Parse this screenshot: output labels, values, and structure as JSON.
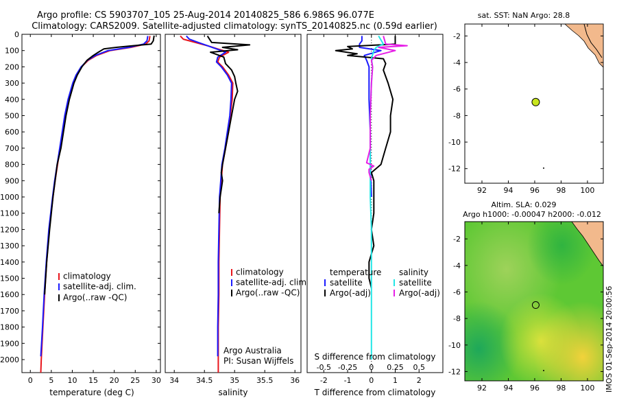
{
  "title": {
    "line1": "Argo profile: CS 5903707_105 25-Aug-2014 20140825_586 6.986S 96.077E",
    "line2": "Climatology: CARS2009. Satellite-adjusted climatology: synTS_20140825.nc (0.59d earlier)"
  },
  "colors": {
    "climatology": "#e8141b",
    "satellite": "#1a1aff",
    "argo": "#000000",
    "sal_satellite": "#22e6e6",
    "sal_argo": "#e61ee6",
    "land": "#f2b98c",
    "sst_marker": "#c8e61e"
  },
  "text": {
    "depth_ticks": [
      "0",
      "100",
      "200",
      "300",
      "400",
      "500",
      "600",
      "700",
      "800",
      "900",
      "1000",
      "1100",
      "1200",
      "1300",
      "1400",
      "1500",
      "1600",
      "1700",
      "1800",
      "1900",
      "2000"
    ],
    "legend_left": [
      "climatology",
      "satellite-adj. clim.",
      "Argo(..raw -QC)"
    ],
    "diff_legend": {
      "temp_header": "temperature",
      "sal_header": "salinity",
      "satellite": "satellite",
      "argo": "Argo(-adj)"
    },
    "attribution": [
      "Argo Australia",
      "PI: Susan Wijffels"
    ],
    "map1_title": "sat. SST: NaN Argo: 28.8",
    "map2_title1": "Altim. SLA: 0.029",
    "map2_title2": "Argo h1000: -0.00047 h2000: -0.012",
    "side_stamp": "IMOS 01-Sep-2014 20:00:56"
  },
  "chart_data": [
    {
      "type": "line",
      "panel": "temperature",
      "xlabel": "temperature (deg C)",
      "ylabel": "",
      "xlim": [
        -2,
        31
      ],
      "ylim": [
        2080,
        0
      ],
      "xticks": [
        "0",
        "5",
        "10",
        "15",
        "20",
        "25",
        "30"
      ],
      "series": [
        {
          "name": "climatology",
          "depth": [
            10,
            40,
            60,
            80,
            100,
            130,
            160,
            200,
            250,
            300,
            400,
            500,
            600,
            700,
            800,
            900,
            1000,
            1200,
            1400,
            1600,
            1800,
            2000,
            2080
          ],
          "values": [
            28.5,
            28.3,
            27.5,
            24,
            19,
            15.8,
            13.8,
            12.2,
            11,
            10.2,
            9.1,
            8.3,
            7.7,
            7.1,
            6.5,
            5.9,
            5.4,
            4.5,
            3.9,
            3.4,
            3.0,
            2.6,
            2.5
          ]
        },
        {
          "name": "satellite-adj. clim.",
          "depth": [
            10,
            40,
            60,
            80,
            100,
            130,
            160,
            200,
            250,
            300,
            400,
            500,
            600,
            700,
            800,
            900,
            1000,
            1200,
            1400,
            1600,
            1800,
            1980
          ],
          "values": [
            28.0,
            27.8,
            27.0,
            23.5,
            18.5,
            15.5,
            13.6,
            12.1,
            10.9,
            10.1,
            9.0,
            8.2,
            7.6,
            7.0,
            6.4,
            5.8,
            5.3,
            4.4,
            3.8,
            3.3,
            2.9,
            2.5
          ]
        },
        {
          "name": "Argo(..raw -QC)",
          "depth": [
            8,
            40,
            60,
            70,
            80,
            90,
            110,
            130,
            160,
            200,
            250,
            300,
            400,
            500,
            600,
            700,
            800,
            900,
            1000,
            1200,
            1400,
            1600
          ],
          "values": [
            29.5,
            29.3,
            28.8,
            24.5,
            20.5,
            17.5,
            16.2,
            15.0,
            13.5,
            12.3,
            11.2,
            10.4,
            9.3,
            8.5,
            7.9,
            7.3,
            6.4,
            5.9,
            5.4,
            4.6,
            3.9,
            3.4
          ]
        }
      ]
    },
    {
      "type": "line",
      "panel": "salinity",
      "xlabel": "salinity",
      "ylabel": "",
      "xlim": [
        33.85,
        36.1
      ],
      "ylim": [
        2080,
        0
      ],
      "xticks": [
        "34",
        "34.5",
        "35",
        "35.5",
        "36"
      ],
      "series": [
        {
          "name": "climatology",
          "depth": [
            10,
            30,
            50,
            70,
            90,
            110,
            140,
            170,
            200,
            250,
            300,
            400,
            500,
            600,
            700,
            800,
            900,
            1000,
            1200,
            1400,
            1600,
            1800,
            2000,
            2080
          ],
          "values": [
            34.1,
            34.15,
            34.35,
            34.55,
            34.72,
            34.9,
            34.75,
            34.72,
            34.8,
            34.9,
            34.97,
            34.96,
            34.93,
            34.9,
            34.85,
            34.8,
            34.78,
            34.76,
            34.75,
            34.74,
            34.74,
            34.73,
            34.73,
            34.73
          ]
        },
        {
          "name": "satellite-adj. clim.",
          "depth": [
            10,
            30,
            50,
            70,
            90,
            110,
            140,
            170,
            200,
            250,
            300,
            400,
            500,
            600,
            700,
            800,
            900,
            1000,
            1200,
            1400,
            1600,
            1800,
            1980
          ],
          "values": [
            34.2,
            34.25,
            34.4,
            34.55,
            34.7,
            34.85,
            34.72,
            34.7,
            34.78,
            34.88,
            34.95,
            34.94,
            34.92,
            34.88,
            34.84,
            34.79,
            34.77,
            34.75,
            34.74,
            34.73,
            34.73,
            34.72,
            34.72
          ]
        },
        {
          "name": "Argo(..raw -QC)",
          "depth": [
            10,
            50,
            65,
            80,
            95,
            110,
            140,
            180,
            220,
            260,
            300,
            350,
            400,
            500,
            600,
            700,
            800,
            850,
            900,
            1000,
            1100
          ],
          "values": [
            34.55,
            34.62,
            35.25,
            34.8,
            35.05,
            34.6,
            34.82,
            34.85,
            34.95,
            35.0,
            35.02,
            35.05,
            35.0,
            34.95,
            34.9,
            34.85,
            34.8,
            34.78,
            34.8,
            34.76,
            34.74
          ]
        }
      ]
    },
    {
      "type": "line",
      "panel": "difference",
      "xlabel": "T difference from climatology",
      "x2label": "S difference from climatology",
      "ylabel": "",
      "xlim": [
        -2.7,
        3.0
      ],
      "ylim": [
        2080,
        0
      ],
      "xticks": [
        "-2",
        "-1",
        "0",
        "1",
        "2"
      ],
      "x2ticks": [
        "-0.5",
        "-0.25",
        "0",
        "0.25",
        "0.5"
      ],
      "series": [
        {
          "name": "temperature satellite",
          "depth": [
            10,
            40,
            60,
            80,
            100,
            130,
            160,
            200,
            300,
            400,
            600,
            800,
            1000
          ],
          "values": [
            -0.4,
            -0.4,
            -0.5,
            -0.5,
            0.4,
            -0.3,
            -0.2,
            -0.1,
            -0.1,
            -0.1,
            -0.05,
            -0.05,
            0
          ]
        },
        {
          "name": "temperature Argo(-adj)",
          "depth": [
            10,
            60,
            75,
            90,
            100,
            120,
            130,
            150,
            180,
            220,
            300,
            400,
            500,
            600,
            700,
            800,
            850,
            900,
            1000,
            1100,
            1200,
            1300,
            1400,
            1500,
            1560
          ],
          "values": [
            1.0,
            1.0,
            -1.0,
            -0.8,
            -1.5,
            -0.6,
            -1.0,
            0.5,
            0.6,
            0.5,
            0.7,
            0.9,
            0.8,
            0.8,
            0.6,
            0.4,
            0.0,
            0.1,
            0.1,
            0.1,
            0.0,
            0.1,
            -0.1,
            -0.1,
            0
          ]
        },
        {
          "name": "salinity satellite",
          "depth": [
            10,
            60,
            80,
            100,
            150,
            200,
            300,
            500,
            800,
            1000,
            1200,
            1600,
            2000
          ],
          "values": [
            0.3,
            0.5,
            0.2,
            0.1,
            0.0,
            0.05,
            0.0,
            -0.05,
            -0.05,
            -0.05,
            0,
            0,
            0
          ]
        },
        {
          "name": "salinity Argo(-adj)",
          "depth": [
            10,
            60,
            70,
            80,
            100,
            130,
            160,
            200,
            300,
            500,
            700,
            790,
            810,
            830,
            850,
            900
          ],
          "values": [
            0.5,
            0.6,
            1.5,
            0.3,
            1.0,
            0.2,
            0.0,
            0.05,
            0.0,
            -0.05,
            -0.05,
            -0.2,
            0.1,
            -0.1,
            -0.1,
            0
          ]
        }
      ]
    },
    {
      "type": "scatter",
      "panel": "sst_map",
      "title": "sat. SST: NaN Argo: 28.8",
      "xlim": [
        90.7,
        101.2
      ],
      "ylim": [
        -13.1,
        -1.1
      ],
      "xticks": [
        "92",
        "94",
        "96",
        "98",
        "100"
      ],
      "yticks": [
        "-2",
        "-4",
        "-6",
        "-8",
        "-10",
        "-12"
      ],
      "points": [
        {
          "lon": 96.077,
          "lat": -6.986
        }
      ]
    },
    {
      "type": "heatmap",
      "panel": "sla_map",
      "title": "Altim. SLA: 0.029 Argo h1000: -0.00047 h2000: -0.012",
      "xlim": [
        90.7,
        101.2
      ],
      "ylim": [
        -12.7,
        -0.7
      ],
      "xticks": [
        "92",
        "94",
        "96",
        "98",
        "100"
      ],
      "yticks": [
        "-2",
        "-4",
        "-6",
        "-8",
        "-10",
        "-12"
      ],
      "points": [
        {
          "lon": 96.077,
          "lat": -6.986
        }
      ]
    }
  ]
}
